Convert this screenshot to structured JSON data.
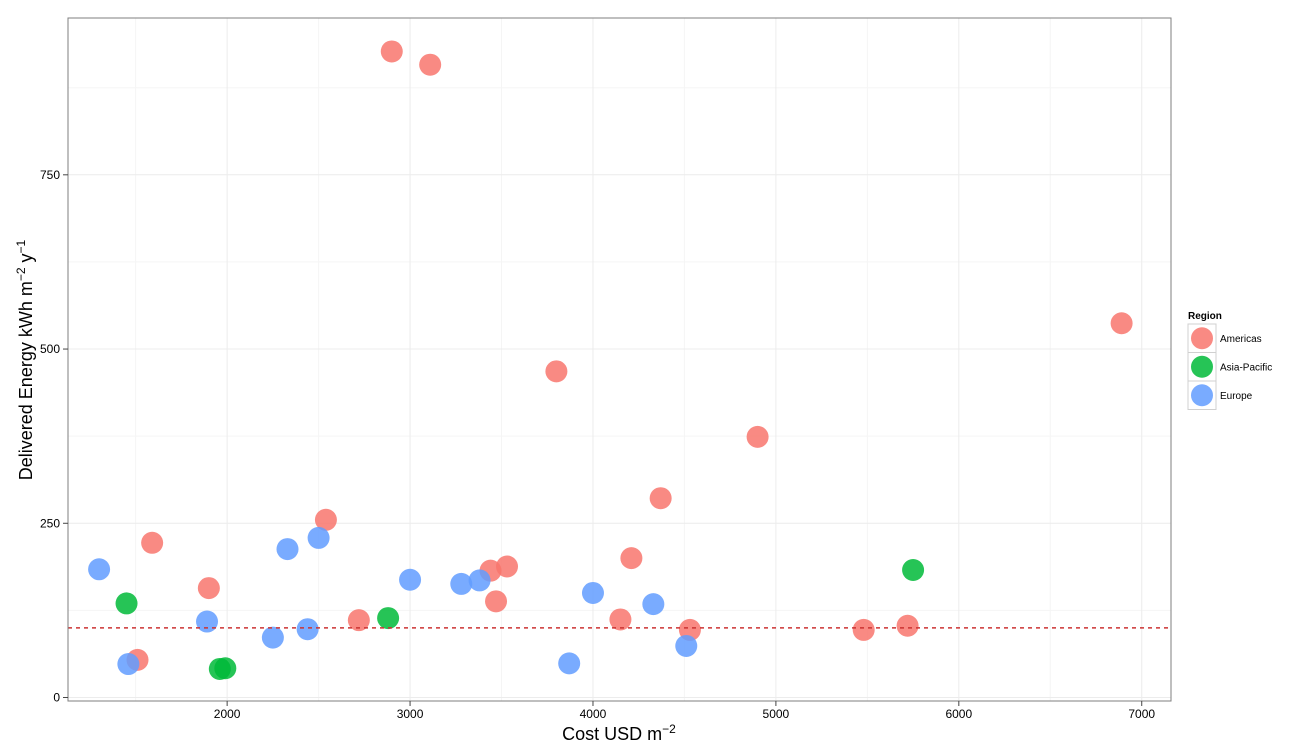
{
  "chart_data": {
    "type": "scatter",
    "xlabel": "Cost USD m",
    "xlabel_sup": "−2",
    "ylabel_parts": [
      "Delivered Energy kWh m",
      "−2",
      " y",
      "−1"
    ],
    "x_ticks": [
      2000,
      3000,
      4000,
      5000,
      6000,
      7000
    ],
    "y_ticks": [
      0,
      250,
      500,
      750
    ],
    "xlim": [
      1130,
      7160
    ],
    "ylim": [
      -5,
      975
    ],
    "grid": true,
    "legend_position": "right",
    "legend_title": "Region",
    "reference_line": {
      "y": 100,
      "color": "#CC3333",
      "style": "dashed"
    },
    "series": [
      {
        "name": "Americas",
        "color": "#F8766D",
        "points": [
          [
            2900,
            927
          ],
          [
            3110,
            908
          ],
          [
            6890,
            537
          ],
          [
            3800,
            468
          ],
          [
            4900,
            374
          ],
          [
            4370,
            286
          ],
          [
            2540,
            255
          ],
          [
            1590,
            222
          ],
          [
            4210,
            200
          ],
          [
            3530,
            188
          ],
          [
            3440,
            182
          ],
          [
            1900,
            157
          ],
          [
            3470,
            138
          ],
          [
            4150,
            112
          ],
          [
            2720,
            111
          ],
          [
            5720,
            103
          ],
          [
            4530,
            97
          ],
          [
            5480,
            97
          ],
          [
            1510,
            54
          ]
        ]
      },
      {
        "name": "Asia-Pacific",
        "color": "#00BA38",
        "points": [
          [
            5750,
            183
          ],
          [
            1450,
            135
          ],
          [
            2880,
            114
          ],
          [
            1990,
            42
          ],
          [
            1960,
            41
          ]
        ]
      },
      {
        "name": "Europe",
        "color": "#619CFF",
        "points": [
          [
            2500,
            229
          ],
          [
            2330,
            213
          ],
          [
            1300,
            184
          ],
          [
            3000,
            169
          ],
          [
            3380,
            168
          ],
          [
            3280,
            163
          ],
          [
            4000,
            150
          ],
          [
            4330,
            134
          ],
          [
            1890,
            109
          ],
          [
            2440,
            98
          ],
          [
            2250,
            86
          ],
          [
            4510,
            74
          ],
          [
            3870,
            49
          ],
          [
            1460,
            48
          ]
        ]
      }
    ]
  }
}
